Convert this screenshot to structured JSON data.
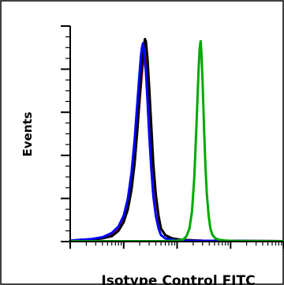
{
  "chart_data": {
    "type": "line",
    "title": "",
    "xlabel": "Isotype Control FITC",
    "ylabel": "Events",
    "xscale": "log",
    "xlim": [
      1,
      10000
    ],
    "ylim": [
      0,
      100
    ],
    "grid": false,
    "legend": "none",
    "series": [
      {
        "color": "#ff0000",
        "points": [
          [
            1,
            0.4
          ],
          [
            1.6,
            0.8
          ],
          [
            2.5,
            1
          ],
          [
            4,
            1.5
          ],
          [
            6,
            3
          ],
          [
            8,
            6
          ],
          [
            10,
            11
          ],
          [
            12,
            18
          ],
          [
            14,
            27
          ],
          [
            16,
            38
          ],
          [
            18,
            52
          ],
          [
            20,
            66
          ],
          [
            22,
            78
          ],
          [
            24,
            87
          ],
          [
            25,
            90
          ],
          [
            26,
            89
          ],
          [
            28,
            82
          ],
          [
            30,
            69
          ],
          [
            33,
            50
          ],
          [
            36,
            34
          ],
          [
            40,
            21
          ],
          [
            45,
            11
          ],
          [
            50,
            6
          ],
          [
            60,
            3
          ],
          [
            80,
            1.5
          ],
          [
            120,
            0.8
          ],
          [
            300,
            0.4
          ],
          [
            10000,
            0.2
          ]
        ]
      },
      {
        "color": "#000000",
        "points": [
          [
            1,
            0.4
          ],
          [
            1.6,
            0.8
          ],
          [
            2.5,
            1
          ],
          [
            4,
            1.5
          ],
          [
            6,
            2.5
          ],
          [
            8,
            5
          ],
          [
            10,
            9
          ],
          [
            12,
            15
          ],
          [
            14,
            24
          ],
          [
            16,
            36
          ],
          [
            18,
            51
          ],
          [
            20,
            67
          ],
          [
            22,
            81
          ],
          [
            24,
            91
          ],
          [
            25,
            94
          ],
          [
            26,
            93
          ],
          [
            28,
            85
          ],
          [
            30,
            72
          ],
          [
            33,
            53
          ],
          [
            36,
            36
          ],
          [
            40,
            22
          ],
          [
            45,
            12
          ],
          [
            50,
            6
          ],
          [
            60,
            3
          ],
          [
            80,
            1.5
          ],
          [
            120,
            0.8
          ],
          [
            300,
            0.4
          ],
          [
            10000,
            0.2
          ]
        ]
      },
      {
        "color": "#0000ff",
        "points": [
          [
            1,
            0.4
          ],
          [
            1.6,
            0.8
          ],
          [
            2.5,
            1.2
          ],
          [
            4,
            2
          ],
          [
            6,
            4
          ],
          [
            8,
            7
          ],
          [
            10,
            12
          ],
          [
            12,
            20
          ],
          [
            14,
            32
          ],
          [
            16,
            47
          ],
          [
            18,
            64
          ],
          [
            20,
            79
          ],
          [
            21,
            86
          ],
          [
            22,
            90
          ],
          [
            23,
            92
          ],
          [
            24,
            89
          ],
          [
            26,
            79
          ],
          [
            28,
            65
          ],
          [
            30,
            50
          ],
          [
            33,
            33
          ],
          [
            36,
            21
          ],
          [
            40,
            12
          ],
          [
            45,
            6
          ],
          [
            50,
            3
          ],
          [
            60,
            1.5
          ],
          [
            80,
            0.8
          ],
          [
            120,
            0.4
          ],
          [
            10000,
            0.2
          ]
        ]
      },
      {
        "color": "#00aa00",
        "points": [
          [
            1,
            0.2
          ],
          [
            50,
            0.2
          ],
          [
            100,
            0.4
          ],
          [
            130,
            1
          ],
          [
            150,
            2.5
          ],
          [
            170,
            6
          ],
          [
            190,
            14
          ],
          [
            210,
            30
          ],
          [
            225,
            48
          ],
          [
            240,
            66
          ],
          [
            255,
            82
          ],
          [
            265,
            90
          ],
          [
            275,
            93
          ],
          [
            285,
            88
          ],
          [
            300,
            74
          ],
          [
            320,
            52
          ],
          [
            340,
            34
          ],
          [
            360,
            22
          ],
          [
            390,
            12
          ],
          [
            420,
            6
          ],
          [
            460,
            3
          ],
          [
            520,
            1.5
          ],
          [
            620,
            0.8
          ],
          [
            800,
            0.5
          ],
          [
            1200,
            0.3
          ],
          [
            10000,
            0.2
          ]
        ]
      }
    ]
  }
}
